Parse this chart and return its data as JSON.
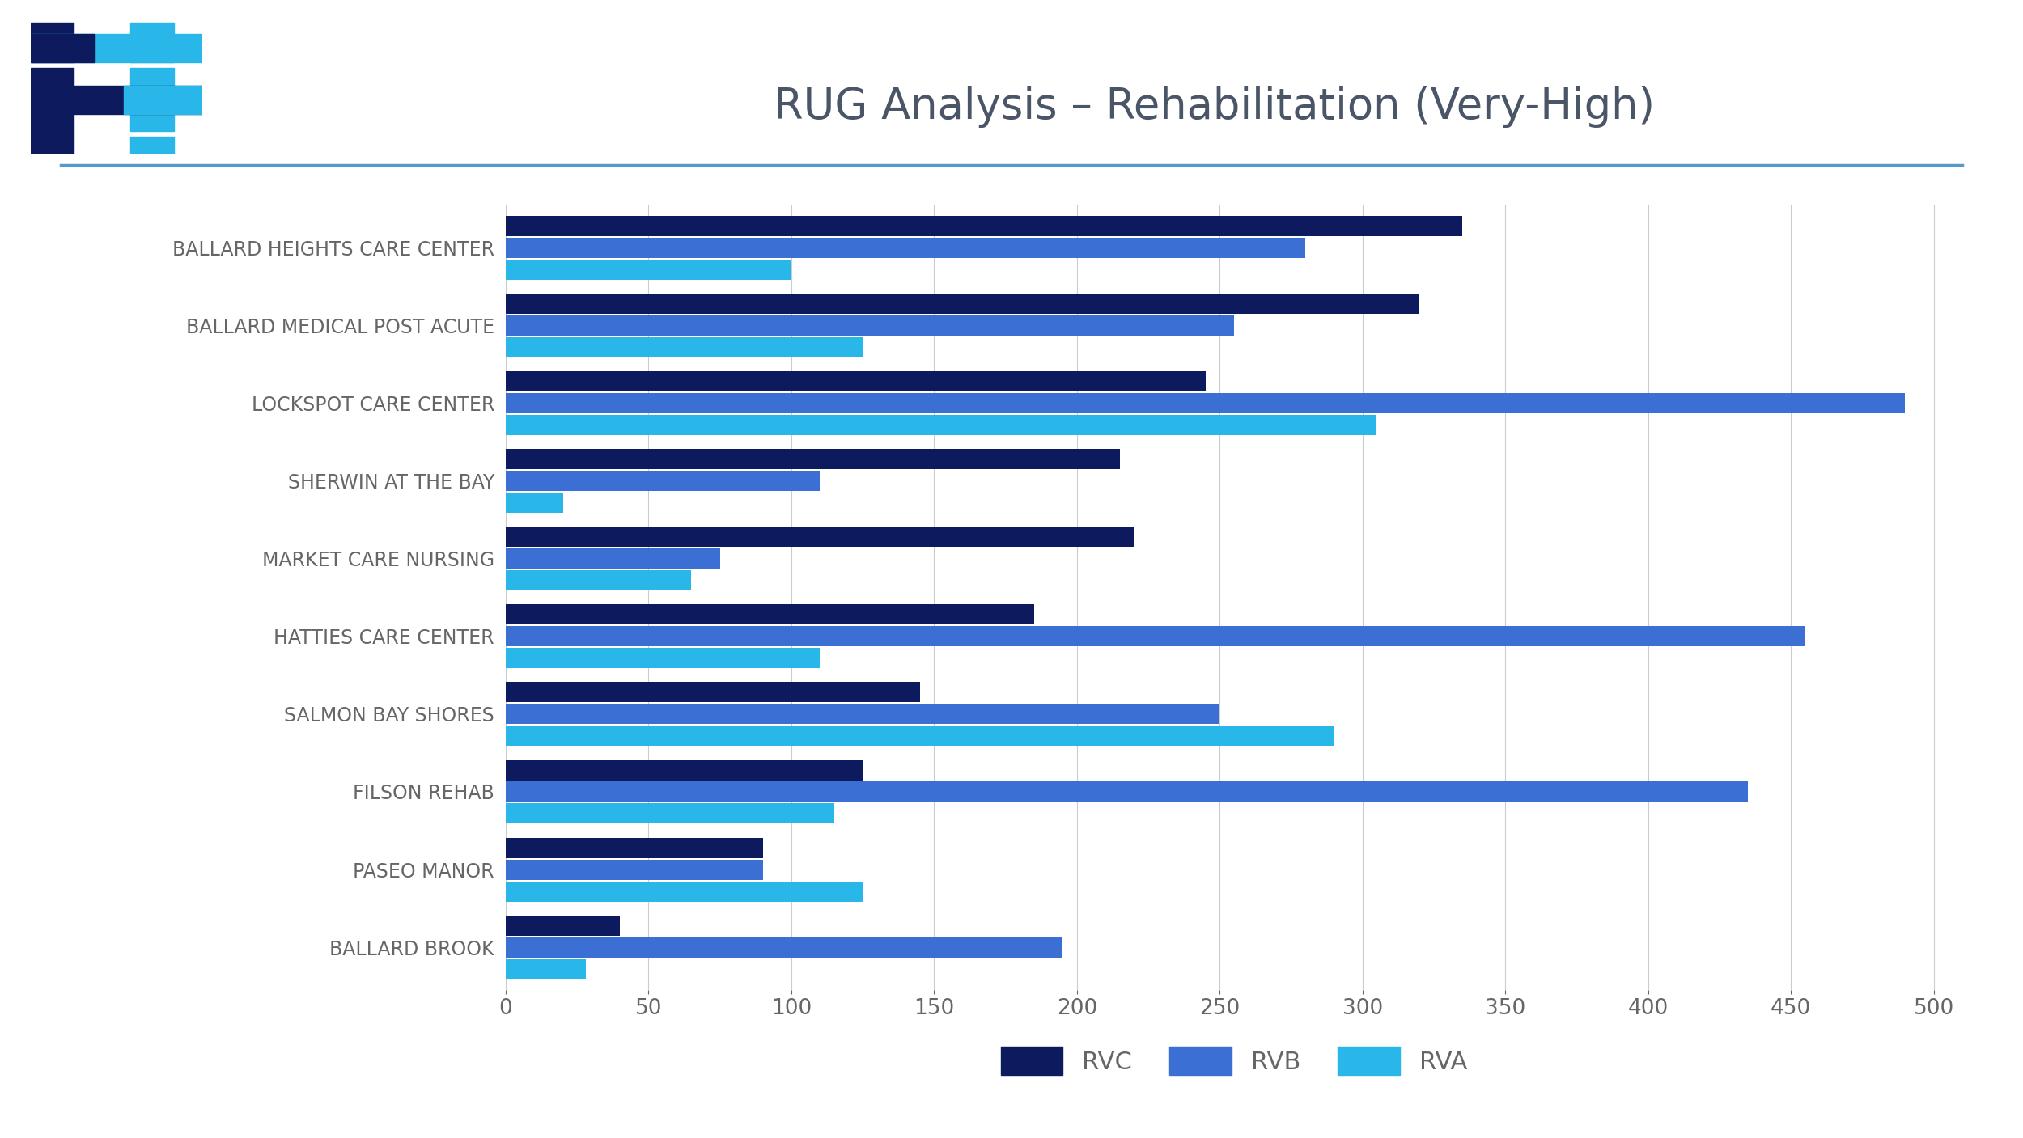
{
  "title": "RUG Analysis – Rehabilitation (Very-High)",
  "categories": [
    "BALLARD HEIGHTS CARE CENTER",
    "BALLARD MEDICAL POST ACUTE",
    "LOCKSPOT CARE CENTER",
    "SHERWIN AT THE BAY",
    "MARKET CARE NURSING",
    "HATTIES CARE CENTER",
    "SALMON BAY SHORES",
    "FILSON REHAB",
    "PASEO MANOR",
    "BALLARD BROOK"
  ],
  "RVC": [
    335,
    320,
    245,
    215,
    220,
    185,
    145,
    125,
    90,
    40
  ],
  "RVB": [
    280,
    255,
    490,
    110,
    75,
    455,
    250,
    435,
    90,
    195
  ],
  "RVA": [
    100,
    125,
    305,
    20,
    65,
    110,
    290,
    115,
    125,
    28
  ],
  "color_RVC": "#0d1b5e",
  "color_RVB": "#3b6fd4",
  "color_RVA": "#29b6e8",
  "background_color": "#ffffff",
  "title_color": "#4a5568",
  "label_color": "#666666",
  "grid_color": "#cccccc",
  "separator_color": "#5599cc",
  "xlim": [
    0,
    510
  ],
  "xticks": [
    0,
    50,
    100,
    150,
    200,
    250,
    300,
    350,
    400,
    450,
    500
  ],
  "title_fontsize": 38,
  "label_fontsize": 17,
  "tick_fontsize": 19,
  "legend_fontsize": 22
}
